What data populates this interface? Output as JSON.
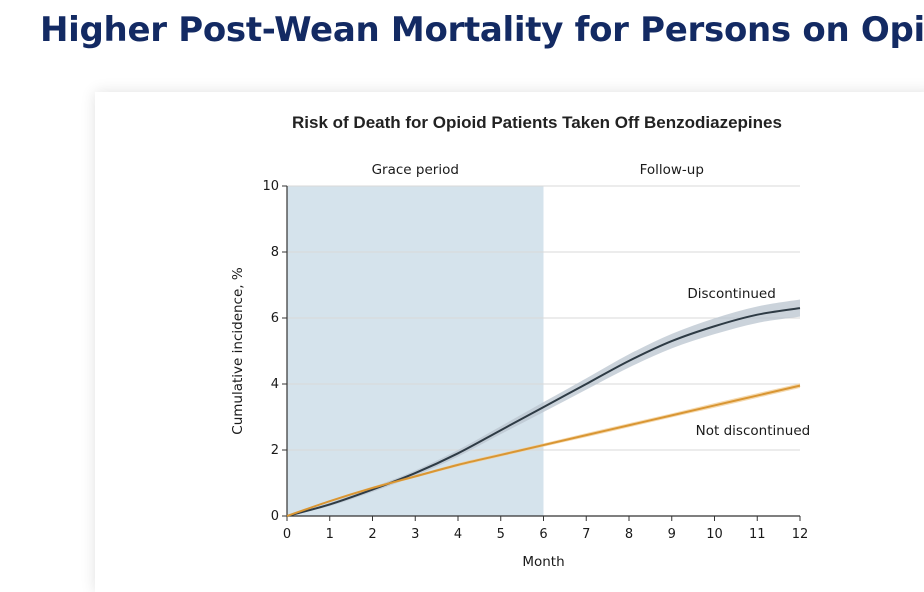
{
  "slide": {
    "title": "Higher Post-Wean Mortality for Persons on Opioids"
  },
  "chart_data": {
    "type": "line",
    "title": "Risk of Death for Opioid Patients Taken Off Benzodiazepines",
    "xlabel": "Month",
    "ylabel": "Cumulative incidence, %",
    "xlim": [
      0,
      12
    ],
    "ylim": [
      0,
      10
    ],
    "xticks": [
      0,
      1,
      2,
      3,
      4,
      5,
      6,
      7,
      8,
      9,
      10,
      11,
      12
    ],
    "yticks": [
      0,
      2,
      4,
      6,
      8,
      10
    ],
    "grid": "horizontal",
    "shaded_region": {
      "label": "Grace period",
      "x_start": 0,
      "x_end": 6,
      "color": "#d5e3ec"
    },
    "region_labels": [
      {
        "label": "Grace period",
        "x_center": 3
      },
      {
        "label": "Follow-up",
        "x_center": 9
      }
    ],
    "series": [
      {
        "name": "Discontinued",
        "color": "#2e3b45",
        "band_color": "#b9c4cf",
        "x": [
          0,
          1,
          2,
          3,
          4,
          5,
          6,
          7,
          8,
          9,
          10,
          11,
          12
        ],
        "values": [
          0,
          0.35,
          0.8,
          1.3,
          1.9,
          2.6,
          3.3,
          4.0,
          4.7,
          5.3,
          5.75,
          6.1,
          6.3
        ],
        "band_halfwidth": [
          0,
          0.05,
          0.07,
          0.08,
          0.1,
          0.12,
          0.15,
          0.17,
          0.2,
          0.22,
          0.24,
          0.25,
          0.26
        ]
      },
      {
        "name": "Not discontinued",
        "color": "#d99633",
        "band_color": "#f1cd96",
        "x": [
          0,
          1,
          2,
          3,
          4,
          5,
          6,
          7,
          8,
          9,
          10,
          11,
          12
        ],
        "values": [
          0,
          0.45,
          0.85,
          1.2,
          1.55,
          1.85,
          2.15,
          2.45,
          2.75,
          3.05,
          3.35,
          3.65,
          3.95
        ],
        "band_halfwidth": [
          0,
          0.03,
          0.04,
          0.04,
          0.05,
          0.05,
          0.05,
          0.06,
          0.06,
          0.06,
          0.07,
          0.07,
          0.07
        ]
      }
    ],
    "axis_color": "#333333",
    "grid_color": "#d9d9d9"
  }
}
